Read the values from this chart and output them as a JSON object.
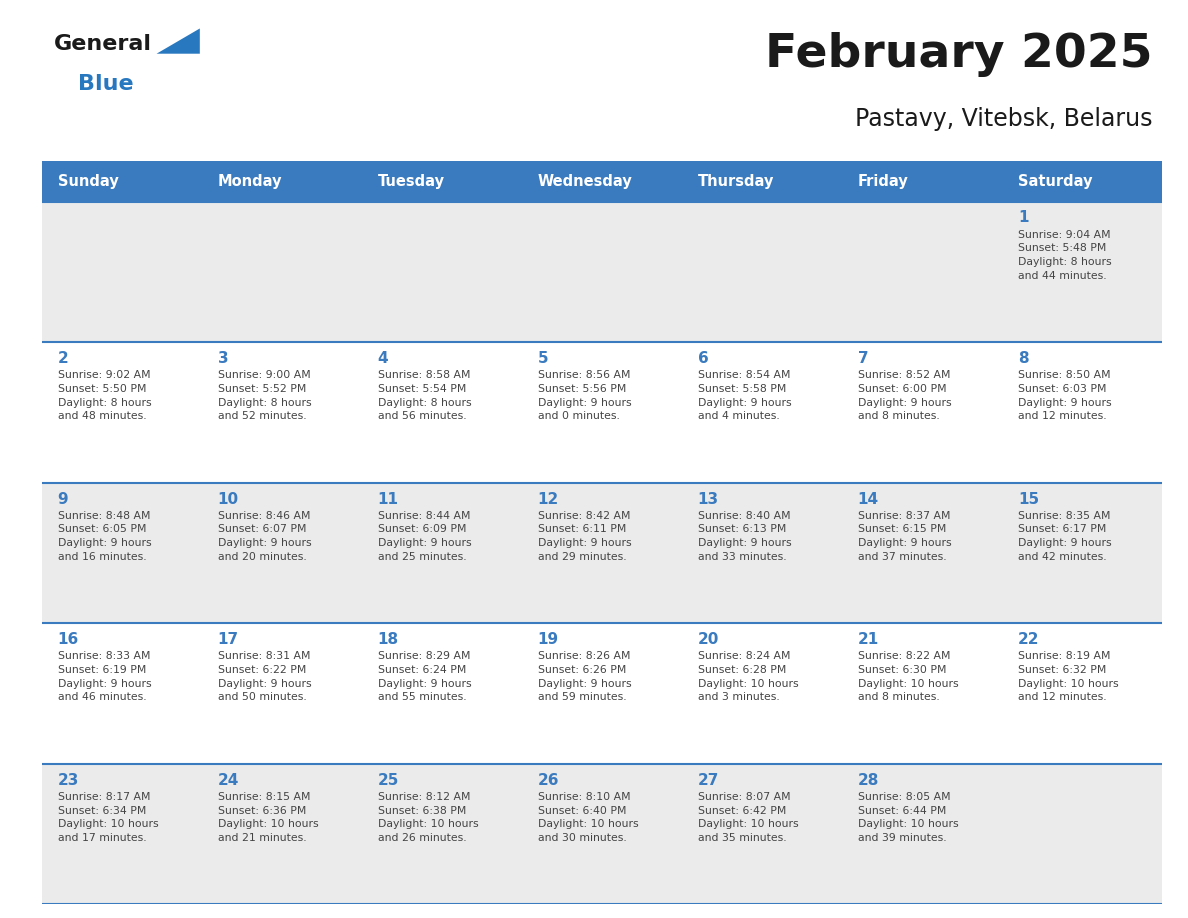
{
  "title": "February 2025",
  "subtitle": "Pastavy, Vitebsk, Belarus",
  "days_of_week": [
    "Sunday",
    "Monday",
    "Tuesday",
    "Wednesday",
    "Thursday",
    "Friday",
    "Saturday"
  ],
  "header_bg": "#3a7abf",
  "header_text": "#ffffff",
  "row1_bg": "#ebebeb",
  "row2_bg": "#ffffff",
  "line_color": "#3a7abf",
  "day_num_color": "#3a7abf",
  "info_color": "#444444",
  "calendar": [
    [
      null,
      null,
      null,
      null,
      null,
      null,
      {
        "day": 1,
        "sunrise": "9:04 AM",
        "sunset": "5:48 PM",
        "daylight": "8 hours\nand 44 minutes."
      }
    ],
    [
      {
        "day": 2,
        "sunrise": "9:02 AM",
        "sunset": "5:50 PM",
        "daylight": "8 hours\nand 48 minutes."
      },
      {
        "day": 3,
        "sunrise": "9:00 AM",
        "sunset": "5:52 PM",
        "daylight": "8 hours\nand 52 minutes."
      },
      {
        "day": 4,
        "sunrise": "8:58 AM",
        "sunset": "5:54 PM",
        "daylight": "8 hours\nand 56 minutes."
      },
      {
        "day": 5,
        "sunrise": "8:56 AM",
        "sunset": "5:56 PM",
        "daylight": "9 hours\nand 0 minutes."
      },
      {
        "day": 6,
        "sunrise": "8:54 AM",
        "sunset": "5:58 PM",
        "daylight": "9 hours\nand 4 minutes."
      },
      {
        "day": 7,
        "sunrise": "8:52 AM",
        "sunset": "6:00 PM",
        "daylight": "9 hours\nand 8 minutes."
      },
      {
        "day": 8,
        "sunrise": "8:50 AM",
        "sunset": "6:03 PM",
        "daylight": "9 hours\nand 12 minutes."
      }
    ],
    [
      {
        "day": 9,
        "sunrise": "8:48 AM",
        "sunset": "6:05 PM",
        "daylight": "9 hours\nand 16 minutes."
      },
      {
        "day": 10,
        "sunrise": "8:46 AM",
        "sunset": "6:07 PM",
        "daylight": "9 hours\nand 20 minutes."
      },
      {
        "day": 11,
        "sunrise": "8:44 AM",
        "sunset": "6:09 PM",
        "daylight": "9 hours\nand 25 minutes."
      },
      {
        "day": 12,
        "sunrise": "8:42 AM",
        "sunset": "6:11 PM",
        "daylight": "9 hours\nand 29 minutes."
      },
      {
        "day": 13,
        "sunrise": "8:40 AM",
        "sunset": "6:13 PM",
        "daylight": "9 hours\nand 33 minutes."
      },
      {
        "day": 14,
        "sunrise": "8:37 AM",
        "sunset": "6:15 PM",
        "daylight": "9 hours\nand 37 minutes."
      },
      {
        "day": 15,
        "sunrise": "8:35 AM",
        "sunset": "6:17 PM",
        "daylight": "9 hours\nand 42 minutes."
      }
    ],
    [
      {
        "day": 16,
        "sunrise": "8:33 AM",
        "sunset": "6:19 PM",
        "daylight": "9 hours\nand 46 minutes."
      },
      {
        "day": 17,
        "sunrise": "8:31 AM",
        "sunset": "6:22 PM",
        "daylight": "9 hours\nand 50 minutes."
      },
      {
        "day": 18,
        "sunrise": "8:29 AM",
        "sunset": "6:24 PM",
        "daylight": "9 hours\nand 55 minutes."
      },
      {
        "day": 19,
        "sunrise": "8:26 AM",
        "sunset": "6:26 PM",
        "daylight": "9 hours\nand 59 minutes."
      },
      {
        "day": 20,
        "sunrise": "8:24 AM",
        "sunset": "6:28 PM",
        "daylight": "10 hours\nand 3 minutes."
      },
      {
        "day": 21,
        "sunrise": "8:22 AM",
        "sunset": "6:30 PM",
        "daylight": "10 hours\nand 8 minutes."
      },
      {
        "day": 22,
        "sunrise": "8:19 AM",
        "sunset": "6:32 PM",
        "daylight": "10 hours\nand 12 minutes."
      }
    ],
    [
      {
        "day": 23,
        "sunrise": "8:17 AM",
        "sunset": "6:34 PM",
        "daylight": "10 hours\nand 17 minutes."
      },
      {
        "day": 24,
        "sunrise": "8:15 AM",
        "sunset": "6:36 PM",
        "daylight": "10 hours\nand 21 minutes."
      },
      {
        "day": 25,
        "sunrise": "8:12 AM",
        "sunset": "6:38 PM",
        "daylight": "10 hours\nand 26 minutes."
      },
      {
        "day": 26,
        "sunrise": "8:10 AM",
        "sunset": "6:40 PM",
        "daylight": "10 hours\nand 30 minutes."
      },
      {
        "day": 27,
        "sunrise": "8:07 AM",
        "sunset": "6:42 PM",
        "daylight": "10 hours\nand 35 minutes."
      },
      {
        "day": 28,
        "sunrise": "8:05 AM",
        "sunset": "6:44 PM",
        "daylight": "10 hours\nand 39 minutes."
      },
      null
    ]
  ],
  "logo_text_general": "General",
  "logo_text_blue": "Blue",
  "logo_black_color": "#1a1a1a",
  "logo_blue_color": "#2878c0"
}
